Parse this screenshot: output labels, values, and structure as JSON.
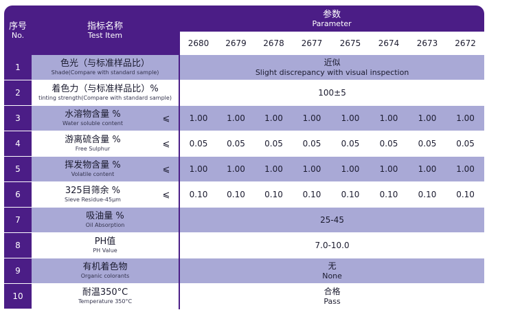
{
  "header": {
    "no_cn": "序号",
    "no_en": "No.",
    "item_cn": "指标名称",
    "item_en": "Test Item",
    "param_cn": "参数",
    "param_en": "Parameter"
  },
  "codes": [
    "2680",
    "2679",
    "2678",
    "2677",
    "2675",
    "2674",
    "2673",
    "2672"
  ],
  "rows": [
    {
      "no": "1",
      "name_cn": "色光（与标准样品比）",
      "name_en": "Shade(Compare with standard sample)",
      "sign": "",
      "merged_cn": "近似",
      "merged_en": "Slight discrepancy with visual inspection"
    },
    {
      "no": "2",
      "name_cn": "着色力（与标准样品比）%",
      "name_en": "tinting strength(Compare with standard sample)",
      "sign": "",
      "merged_cn": "100±5",
      "merged_en": ""
    },
    {
      "no": "3",
      "name_cn": "水溶物含量 %",
      "name_en": "Water soluble content",
      "sign": "⩽",
      "values": [
        "1.00",
        "1.00",
        "1.00",
        "1.00",
        "1.00",
        "1.00",
        "1.00",
        "1.00"
      ]
    },
    {
      "no": "4",
      "name_cn": "游离硫含量 %",
      "name_en": "Free Sulphur",
      "sign": "⩽",
      "values": [
        "0.05",
        "0.05",
        "0.05",
        "0.05",
        "0.05",
        "0.05",
        "0.05",
        "0.05"
      ]
    },
    {
      "no": "5",
      "name_cn": "挥发物含量 %",
      "name_en": "Volatile content",
      "sign": "⩽",
      "values": [
        "1.00",
        "1.00",
        "1.00",
        "1.00",
        "1.00",
        "1.00",
        "1.00",
        "1.00"
      ]
    },
    {
      "no": "6",
      "name_cn": "325目筛余 %",
      "name_en": "Sieve Residue-45μm",
      "sign": "⩽",
      "values": [
        "0.10",
        "0.10",
        "0.10",
        "0.10",
        "0.10",
        "0.10",
        "0.10",
        "0.10"
      ]
    },
    {
      "no": "7",
      "name_cn": "吸油量 %",
      "name_en": "Oil Absorption",
      "sign": "",
      "merged_cn": "25-45",
      "merged_en": ""
    },
    {
      "no": "8",
      "name_cn": "PH值",
      "name_en": "PH Value",
      "sign": "",
      "merged_cn": "7.0-10.0",
      "merged_en": ""
    },
    {
      "no": "9",
      "name_cn": "有机着色物",
      "name_en": "Organic colorants",
      "sign": "",
      "merged_cn": "无",
      "merged_en": "None"
    },
    {
      "no": "10",
      "name_cn": "耐温350°C",
      "name_en": "Temperature 350°C",
      "sign": "",
      "merged_cn": "合格",
      "merged_en": "Pass"
    }
  ]
}
